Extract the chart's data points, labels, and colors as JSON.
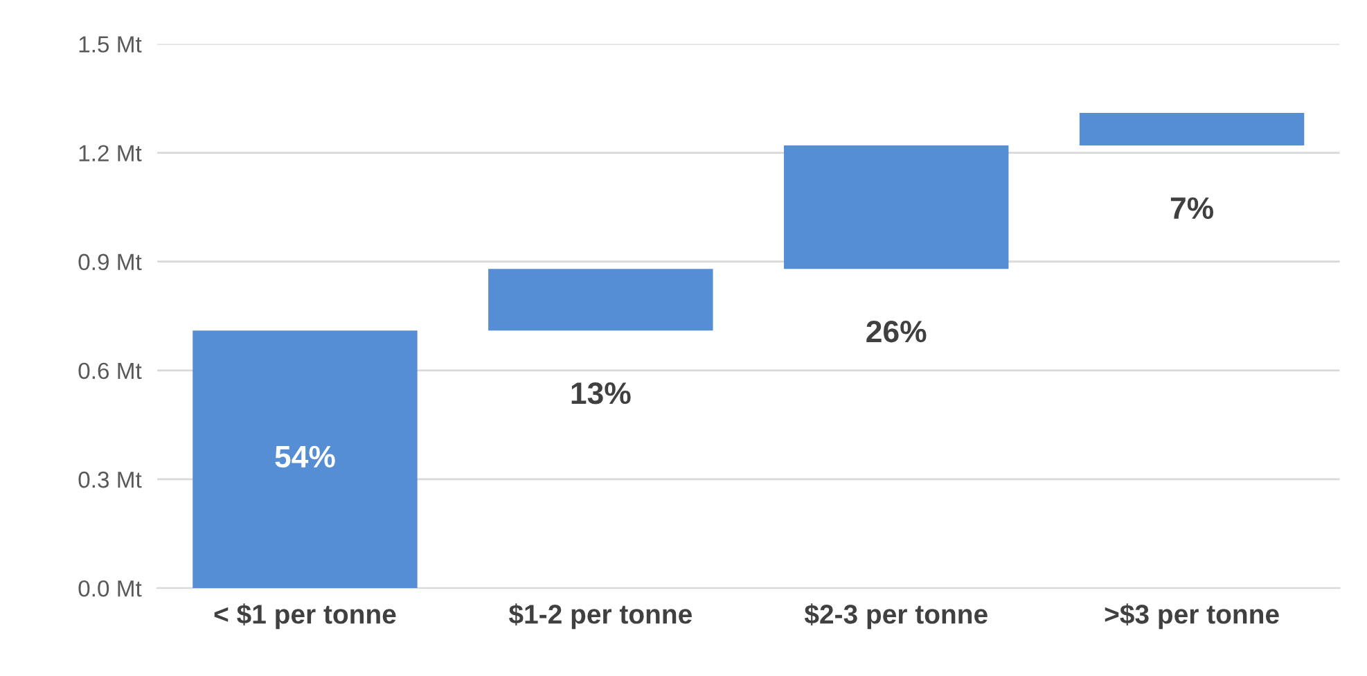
{
  "chart_data": {
    "type": "bar",
    "categories": [
      "< $1 per tonne",
      "$1-2 per tonne",
      "$2-3 per tonne",
      ">$3 per tonne"
    ],
    "values": [
      0.71,
      0.17,
      0.34,
      0.09
    ],
    "base": [
      0,
      0.71,
      0.88,
      1.22
    ],
    "annotations": [
      "54%",
      "13%",
      "26%",
      "7%"
    ],
    "color": "#558ed5",
    "ylim": [
      0,
      1.5
    ],
    "yticks": [
      {
        "value": 0,
        "label": "0.0 Mt"
      },
      {
        "value": 0.3,
        "label": "0.3 Mt"
      },
      {
        "value": 0.6,
        "label": "0.6 Mt"
      },
      {
        "value": 0.9,
        "label": "0.9 Mt"
      },
      {
        "value": 1.2,
        "label": "1.2 Mt"
      },
      {
        "value": 1.5,
        "label": "1.5 Mt"
      }
    ],
    "grid": "y"
  }
}
